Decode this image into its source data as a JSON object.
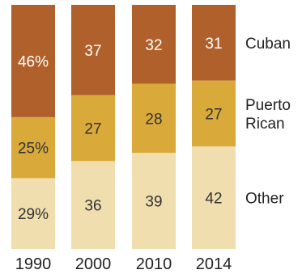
{
  "chart_data": {
    "type": "bar",
    "stacked": true,
    "normalized_percent": true,
    "categories": [
      "1990",
      "2000",
      "2010",
      "2014"
    ],
    "series": [
      {
        "name": "Other",
        "values": [
          29,
          36,
          39,
          42
        ],
        "labels": [
          "29%",
          "36",
          "39",
          "42"
        ],
        "color": "#f0deaf"
      },
      {
        "name": "Puerto Rican",
        "name_lines": [
          "Puerto",
          "Rican"
        ],
        "values": [
          25,
          27,
          28,
          27
        ],
        "labels": [
          "25%",
          "27",
          "28",
          "27"
        ],
        "color": "#d9a93a"
      },
      {
        "name": "Cuban",
        "values": [
          46,
          37,
          32,
          31
        ],
        "labels": [
          "46%",
          "37",
          "32",
          "31"
        ],
        "color": "#b0602a"
      }
    ],
    "legend": "right, inline",
    "grid": false,
    "ylim": [
      0,
      100
    ]
  }
}
